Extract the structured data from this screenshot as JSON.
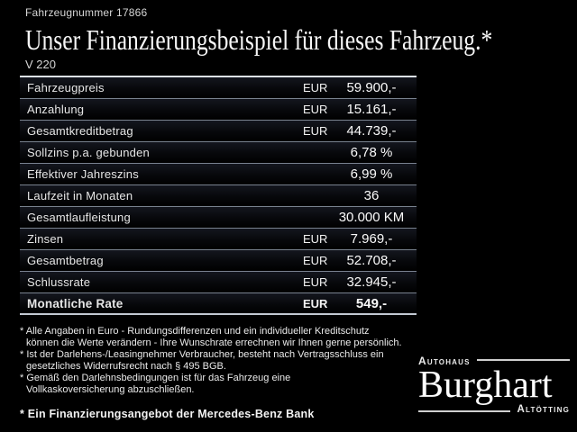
{
  "header": {
    "vehicle_number": "Fahrzeugnummer 17866",
    "title": "Unser Finanzierungsbeispiel für dieses Fahrzeug.*",
    "model": "V 220"
  },
  "table": {
    "rows": [
      {
        "label": "Fahrzeugpreis",
        "currency": "EUR",
        "value": "59.900,-",
        "emphasis": false
      },
      {
        "label": "Anzahlung",
        "currency": "EUR",
        "value": "15.161,-",
        "emphasis": false
      },
      {
        "label": "Gesamtkreditbetrag",
        "currency": "EUR",
        "value": "44.739,-",
        "emphasis": false
      },
      {
        "label": "Sollzins p.a. gebunden",
        "currency": "",
        "value": "6,78 %",
        "emphasis": false
      },
      {
        "label": "Effektiver Jahreszins",
        "currency": "",
        "value": "6,99 %",
        "emphasis": false
      },
      {
        "label": "Laufzeit in Monaten",
        "currency": "",
        "value": "36",
        "emphasis": false
      },
      {
        "label": "Gesamtlaufleistung",
        "currency": "",
        "value": "30.000 KM",
        "emphasis": false
      },
      {
        "label": "Zinsen",
        "currency": "EUR",
        "value": "7.969,-",
        "emphasis": false
      },
      {
        "label": "Gesamtbetrag",
        "currency": "EUR",
        "value": "52.708,-",
        "emphasis": false
      },
      {
        "label": "Schlussrate",
        "currency": "EUR",
        "value": "32.945,-",
        "emphasis": false
      },
      {
        "label": "Monatliche Rate",
        "currency": "EUR",
        "value": "549,-",
        "emphasis": true
      }
    ]
  },
  "footnotes": {
    "lines": [
      "* Alle Angaben in Euro - Rundungsdifferenzen und ein individueller Kreditschutz",
      "können die Werte verändern - Ihre Wunschrate errechnen wir Ihnen gerne persönlich.",
      "* Ist der Darlehens-/Leasingnehmer Verbraucher, besteht nach Vertragsschluss ein",
      "gesetzliches Widerrufsrecht nach § 495 BGB.",
      "* Gemäß den Darlehnsbedingungen ist für das Fahrzeug eine",
      "Vollkaskoversicherung abzuschließen."
    ],
    "financing_note": "* Ein Finanzierungsangebot der Mercedes-Benz Bank"
  },
  "logo": {
    "top": "Autohaus",
    "name": "Burghart",
    "bottom": "Altötting"
  },
  "colors": {
    "background": "#000000",
    "text": "#f0f0f0",
    "separator_line": "#79828f",
    "header_rule": "#dde1e8"
  }
}
